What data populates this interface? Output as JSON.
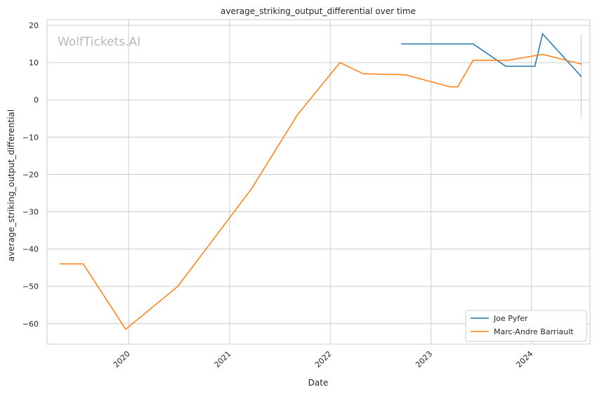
{
  "chart_data": {
    "type": "line",
    "title": "average_striking_output_differential over time",
    "xlabel": "Date",
    "ylabel": "average_striking_output_differential",
    "watermark": "WolfTickets.AI",
    "xlim": [
      "2019-03-11",
      "2024-07-31"
    ],
    "ylim": [
      -65.5,
      21.5
    ],
    "x_ticks": [
      "2020",
      "2021",
      "2022",
      "2023",
      "2024"
    ],
    "y_ticks": [
      "20",
      "10",
      "0",
      "−10",
      "−20",
      "−30",
      "−40",
      "−50",
      "−60"
    ],
    "grid": true,
    "legend_position": "lower-right",
    "series": [
      {
        "name": "Joe Pyfer",
        "color": "#1f77b4",
        "points": [
          {
            "x": "2022-09-17",
            "y": 15
          },
          {
            "x": "2023-06-03",
            "y": 15
          },
          {
            "x": "2023-09-30",
            "y": 9
          },
          {
            "x": "2024-01-13",
            "y": 9
          },
          {
            "x": "2024-02-10",
            "y": 17.7
          },
          {
            "x": "2024-06-29",
            "y": 6.3
          }
        ],
        "error_bar": {
          "x": "2024-06-29",
          "low": -5,
          "high": 17.7
        }
      },
      {
        "name": "Marc-Andre Barriault",
        "color": "#ff7f0e",
        "points": [
          {
            "x": "2019-04-27",
            "y": -44
          },
          {
            "x": "2019-07-20",
            "y": -44
          },
          {
            "x": "2019-12-21",
            "y": -61.5
          },
          {
            "x": "2020-06-27",
            "y": -50
          },
          {
            "x": "2021-03-20",
            "y": -24
          },
          {
            "x": "2021-09-04",
            "y": -4
          },
          {
            "x": "2022-02-05",
            "y": 10
          },
          {
            "x": "2022-04-30",
            "y": 7
          },
          {
            "x": "2022-10-01",
            "y": 6.7
          },
          {
            "x": "2023-03-11",
            "y": 3.5
          },
          {
            "x": "2023-04-08",
            "y": 3.5
          },
          {
            "x": "2023-06-03",
            "y": 10.6
          },
          {
            "x": "2023-10-07",
            "y": 10.6
          },
          {
            "x": "2024-02-10",
            "y": 12.2
          },
          {
            "x": "2024-06-29",
            "y": 9.6
          }
        ]
      }
    ]
  }
}
